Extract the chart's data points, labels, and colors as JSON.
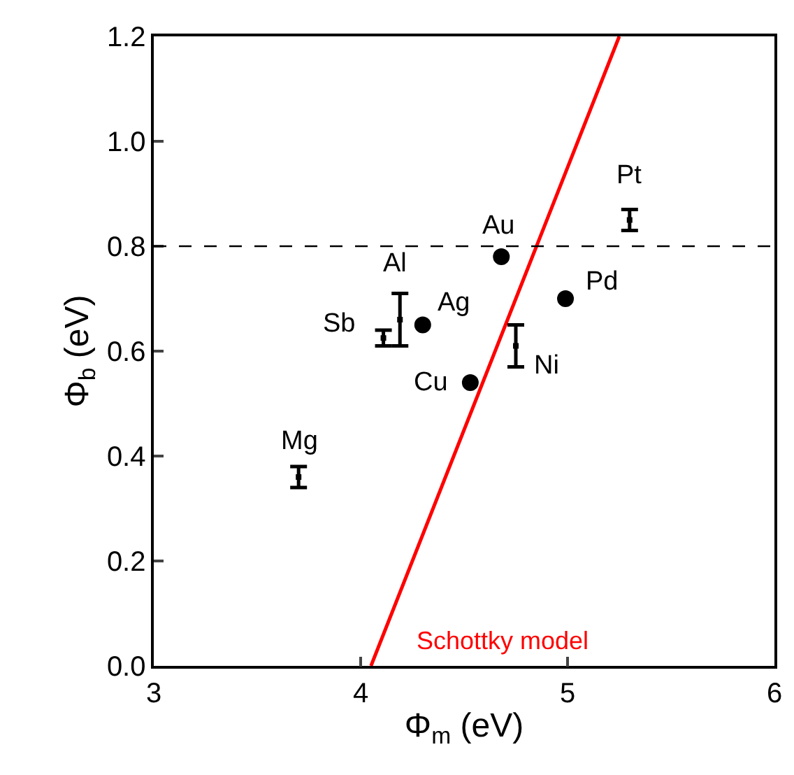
{
  "chart_data": {
    "type": "scatter",
    "xlabel": "Φ$_{m}$ (eV)",
    "ylabel": "Φ$_{b}$ (eV)",
    "xlim": [
      3,
      6
    ],
    "xticks": [
      3,
      4,
      5,
      6
    ],
    "ylim": [
      0,
      1.2
    ],
    "yticks": [
      {
        "value": 0,
        "label": "0.0"
      },
      0.2,
      0.4,
      0.6,
      0.8,
      {
        "value": 1,
        "label": "1.0"
      },
      1.2
    ],
    "series": [
      {
        "marker": "circle",
        "color": "#000000",
        "x": [
          4.68,
          4.3,
          4.99,
          4.53
        ],
        "values": [
          0.78,
          0.65,
          0.7,
          0.54
        ]
      },
      {
        "color": "#000000",
        "x": [
          5.3,
          4.75,
          4.19,
          4.11,
          3.7
        ],
        "values": [
          0.85,
          0.61,
          0.66,
          0.625,
          0.36
        ],
        "errors": [
          0.02,
          0.04,
          0.05,
          0.015,
          0.02
        ]
      },
      {
        "type": "line",
        "marker": "none",
        "color": "#ff0000",
        "x": [
          4.05,
          5.25
        ],
        "values": [
          0,
          1.2
        ]
      }
    ],
    "ref_lines": [
      {
        "axis": "y",
        "value": 0.8,
        "color": "#000000",
        "line_style": "dashed"
      }
    ],
    "annotations": [
      {
        "text": "Au",
        "x": 4.68,
        "y": 0.78
      },
      {
        "text": "Ag",
        "x": 4.3,
        "y": 0.65
      },
      {
        "text": "Pd",
        "x": 4.99,
        "y": 0.7
      },
      {
        "text": "Cu",
        "x": 4.53,
        "y": 0.54
      },
      {
        "text": "Pt",
        "x": 5.3,
        "y": 0.85
      },
      {
        "text": "Ni",
        "x": 4.75,
        "y": 0.61
      },
      {
        "text": "Al",
        "x": 4.19,
        "y": 0.66
      },
      {
        "text": "Sb",
        "x": 4.11,
        "y": 0.625
      },
      {
        "text": "Mg",
        "x": 3.7,
        "y": 0.36
      },
      "Schottky model"
    ]
  }
}
